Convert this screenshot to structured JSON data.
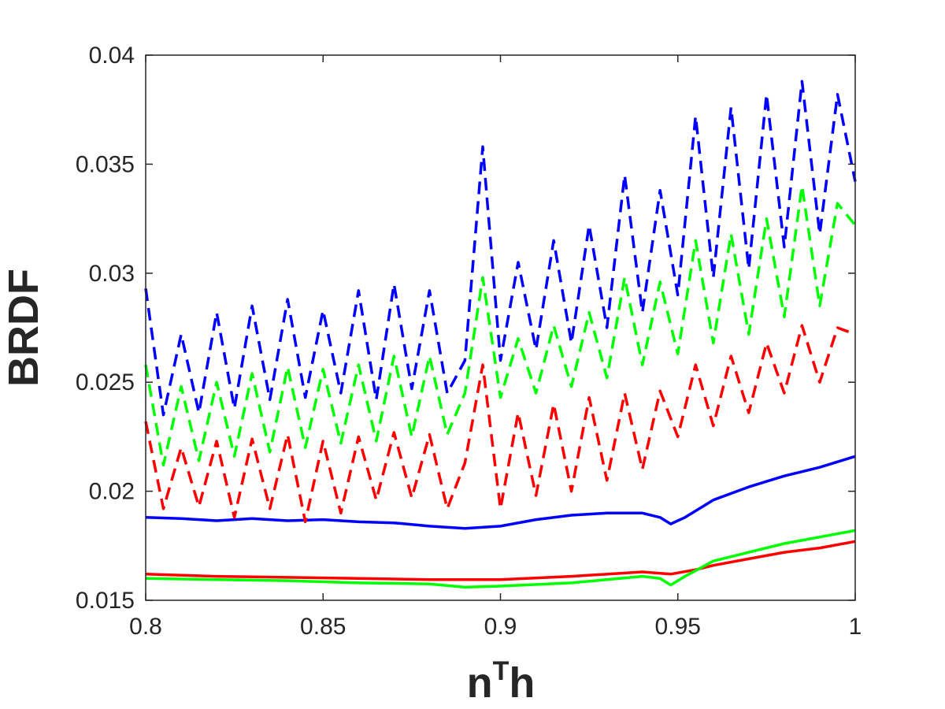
{
  "chart_data": {
    "type": "line",
    "title": "",
    "xlabel": "n",
    "xlabel_sup": "T",
    "xlabel_tail": "h",
    "ylabel": "BRDF",
    "xlim": [
      0.8,
      1.0
    ],
    "ylim": [
      0.015,
      0.04
    ],
    "xticks": [
      0.8,
      0.85,
      0.9,
      0.95,
      1.0
    ],
    "xtick_labels": [
      "0.8",
      "0.85",
      "0.9",
      "0.95",
      "1"
    ],
    "yticks": [
      0.015,
      0.02,
      0.025,
      0.03,
      0.035,
      0.04
    ],
    "ytick_labels": [
      "0.015",
      "0.02",
      "0.025",
      "0.03",
      "0.035",
      "0.04"
    ],
    "grid": false,
    "box": true,
    "series": [
      {
        "color": "#0000ff",
        "style": "solid",
        "x": [
          0.8,
          0.81,
          0.82,
          0.83,
          0.84,
          0.85,
          0.86,
          0.87,
          0.88,
          0.89,
          0.9,
          0.91,
          0.92,
          0.93,
          0.94,
          0.945,
          0.948,
          0.952,
          0.96,
          0.97,
          0.98,
          0.99,
          1.0
        ],
        "values": [
          0.0188,
          0.01875,
          0.01865,
          0.01875,
          0.01865,
          0.0187,
          0.0186,
          0.01855,
          0.0184,
          0.0183,
          0.0184,
          0.0187,
          0.0189,
          0.019,
          0.019,
          0.0188,
          0.0185,
          0.0188,
          0.0196,
          0.0202,
          0.0207,
          0.0211,
          0.0216
        ]
      },
      {
        "color": "#ff0000",
        "style": "solid",
        "x": [
          0.8,
          0.82,
          0.84,
          0.86,
          0.88,
          0.9,
          0.92,
          0.94,
          0.948,
          0.955,
          0.96,
          0.97,
          0.98,
          0.99,
          1.0
        ],
        "values": [
          0.0162,
          0.0161,
          0.01605,
          0.016,
          0.01595,
          0.01595,
          0.0161,
          0.0163,
          0.0162,
          0.0164,
          0.0166,
          0.0169,
          0.0172,
          0.0174,
          0.0177
        ]
      },
      {
        "color": "#00ff00",
        "style": "solid",
        "x": [
          0.8,
          0.82,
          0.84,
          0.86,
          0.88,
          0.89,
          0.9,
          0.92,
          0.94,
          0.945,
          0.948,
          0.952,
          0.96,
          0.97,
          0.98,
          0.99,
          1.0
        ],
        "values": [
          0.016,
          0.01595,
          0.0159,
          0.0158,
          0.01575,
          0.0156,
          0.01565,
          0.0158,
          0.0161,
          0.016,
          0.0157,
          0.0161,
          0.0168,
          0.0172,
          0.0176,
          0.0179,
          0.0182
        ]
      },
      {
        "color": "#0000ff",
        "style": "dashed",
        "x": [
          0.8,
          0.805,
          0.81,
          0.815,
          0.82,
          0.825,
          0.83,
          0.835,
          0.84,
          0.845,
          0.85,
          0.855,
          0.86,
          0.865,
          0.87,
          0.875,
          0.88,
          0.885,
          0.89,
          0.895,
          0.9,
          0.905,
          0.91,
          0.915,
          0.92,
          0.925,
          0.93,
          0.935,
          0.94,
          0.945,
          0.95,
          0.955,
          0.96,
          0.965,
          0.97,
          0.975,
          0.98,
          0.985,
          0.99,
          0.995,
          1.0
        ],
        "values": [
          0.0293,
          0.0235,
          0.0272,
          0.0236,
          0.0282,
          0.0238,
          0.0285,
          0.0242,
          0.0288,
          0.0243,
          0.0283,
          0.0245,
          0.0292,
          0.0242,
          0.0295,
          0.0247,
          0.0292,
          0.0245,
          0.026,
          0.0358,
          0.026,
          0.0305,
          0.0265,
          0.0315,
          0.0268,
          0.0322,
          0.0275,
          0.0345,
          0.0282,
          0.0338,
          0.029,
          0.0372,
          0.0298,
          0.0376,
          0.0302,
          0.0382,
          0.0312,
          0.0388,
          0.0318,
          0.0382,
          0.0342
        ]
      },
      {
        "color": "#00ff00",
        "style": "dashed",
        "x": [
          0.8,
          0.805,
          0.81,
          0.815,
          0.82,
          0.825,
          0.83,
          0.835,
          0.84,
          0.845,
          0.85,
          0.855,
          0.86,
          0.865,
          0.87,
          0.875,
          0.88,
          0.885,
          0.89,
          0.895,
          0.9,
          0.905,
          0.91,
          0.915,
          0.92,
          0.925,
          0.93,
          0.935,
          0.94,
          0.945,
          0.95,
          0.955,
          0.96,
          0.965,
          0.97,
          0.975,
          0.98,
          0.985,
          0.99,
          0.995,
          1.0
        ],
        "values": [
          0.0258,
          0.0212,
          0.0248,
          0.0214,
          0.025,
          0.0216,
          0.0254,
          0.0218,
          0.0257,
          0.022,
          0.0256,
          0.0222,
          0.0258,
          0.0223,
          0.0262,
          0.0225,
          0.0262,
          0.0226,
          0.0245,
          0.0298,
          0.0243,
          0.027,
          0.0245,
          0.0276,
          0.0248,
          0.0282,
          0.0252,
          0.0298,
          0.0258,
          0.0296,
          0.0263,
          0.0315,
          0.0268,
          0.0318,
          0.0272,
          0.0325,
          0.028,
          0.034,
          0.0285,
          0.0332,
          0.0322
        ]
      },
      {
        "color": "#ff0000",
        "style": "dashed",
        "x": [
          0.8,
          0.805,
          0.81,
          0.815,
          0.82,
          0.825,
          0.83,
          0.835,
          0.84,
          0.845,
          0.85,
          0.855,
          0.86,
          0.865,
          0.87,
          0.875,
          0.88,
          0.885,
          0.89,
          0.895,
          0.9,
          0.905,
          0.91,
          0.915,
          0.92,
          0.925,
          0.93,
          0.935,
          0.94,
          0.945,
          0.95,
          0.955,
          0.96,
          0.965,
          0.97,
          0.975,
          0.98,
          0.985,
          0.99,
          0.995,
          1.0
        ],
        "values": [
          0.0232,
          0.0192,
          0.022,
          0.0193,
          0.0223,
          0.0188,
          0.0224,
          0.0192,
          0.0226,
          0.0186,
          0.0223,
          0.019,
          0.0225,
          0.0196,
          0.0227,
          0.0197,
          0.0226,
          0.0192,
          0.0213,
          0.0258,
          0.0192,
          0.0236,
          0.0198,
          0.024,
          0.02,
          0.0243,
          0.0205,
          0.0245,
          0.021,
          0.0246,
          0.0225,
          0.0258,
          0.023,
          0.0262,
          0.0236,
          0.0268,
          0.0245,
          0.0276,
          0.025,
          0.0275,
          0.0272
        ]
      }
    ]
  }
}
